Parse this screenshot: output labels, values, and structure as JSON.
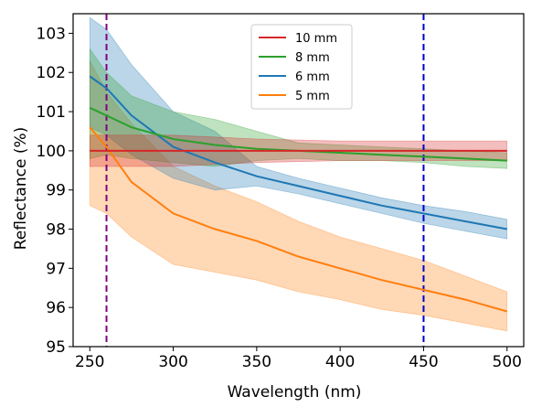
{
  "chart_data": {
    "type": "line",
    "xlabel": "Wavelength (nm)",
    "ylabel": "Reflectance (%)",
    "xlim": [
      240,
      510
    ],
    "ylim": [
      95,
      103.5
    ],
    "xticks": [
      250,
      300,
      350,
      400,
      450,
      500
    ],
    "yticks": [
      95,
      96,
      97,
      98,
      99,
      100,
      101,
      102,
      103
    ],
    "grid": false,
    "legend_position": "top-center",
    "vlines": [
      {
        "x": 260,
        "color": "#800080",
        "style": "dashed"
      },
      {
        "x": 450,
        "color": "#0000cc",
        "style": "dashed"
      }
    ],
    "series": [
      {
        "name": "10 mm",
        "color": "#d62728",
        "x": [
          250,
          300,
          350,
          400,
          450,
          500
        ],
        "values": [
          100.0,
          100.0,
          100.0,
          100.0,
          100.0,
          100.0
        ],
        "band_lower": [
          99.6,
          99.6,
          99.7,
          99.75,
          99.75,
          99.75
        ],
        "band_upper": [
          100.4,
          100.4,
          100.3,
          100.25,
          100.25,
          100.25
        ]
      },
      {
        "name": "8 mm",
        "color": "#2ca02c",
        "x": [
          250,
          260,
          275,
          300,
          325,
          350,
          375,
          400,
          425,
          450,
          475,
          500
        ],
        "values": [
          101.1,
          100.9,
          100.6,
          100.3,
          100.15,
          100.05,
          100.0,
          99.95,
          99.9,
          99.85,
          99.8,
          99.75
        ],
        "band_lower": [
          99.8,
          99.9,
          99.8,
          99.7,
          99.6,
          99.75,
          99.8,
          99.75,
          99.75,
          99.7,
          99.6,
          99.55
        ],
        "band_upper": [
          102.6,
          102.0,
          101.4,
          101.0,
          100.8,
          100.5,
          100.2,
          100.15,
          100.1,
          100.05,
          100.0,
          99.95
        ]
      },
      {
        "name": "6 mm",
        "color": "#1f77b4",
        "x": [
          250,
          260,
          275,
          300,
          325,
          350,
          375,
          400,
          425,
          450,
          475,
          500
        ],
        "values": [
          101.9,
          101.6,
          100.9,
          100.1,
          99.7,
          99.35,
          99.1,
          98.85,
          98.6,
          98.4,
          98.2,
          98.0
        ],
        "band_lower": [
          100.6,
          100.4,
          99.9,
          99.3,
          99.0,
          99.1,
          98.9,
          98.65,
          98.4,
          98.15,
          97.95,
          97.75
        ],
        "band_upper": [
          103.4,
          103.1,
          102.2,
          101.0,
          100.5,
          99.6,
          99.3,
          99.05,
          98.8,
          98.6,
          98.45,
          98.25
        ]
      },
      {
        "name": "5 mm",
        "color": "#ff7f0e",
        "x": [
          250,
          260,
          275,
          300,
          325,
          350,
          375,
          400,
          425,
          450,
          475,
          500
        ],
        "values": [
          100.6,
          100.1,
          99.2,
          98.4,
          98.0,
          97.7,
          97.3,
          97.0,
          96.7,
          96.45,
          96.2,
          95.9
        ],
        "band_lower": [
          98.6,
          98.4,
          97.8,
          97.1,
          96.9,
          96.7,
          96.4,
          96.2,
          95.95,
          95.8,
          95.6,
          95.4
        ],
        "band_upper": [
          102.3,
          101.5,
          100.7,
          99.6,
          99.1,
          98.7,
          98.2,
          97.8,
          97.5,
          97.2,
          96.8,
          96.4
        ]
      }
    ]
  }
}
